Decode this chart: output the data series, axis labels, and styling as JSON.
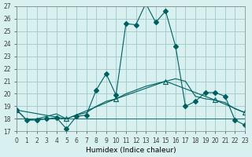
{
  "title": "",
  "xlabel": "Humidex (Indice chaleur)",
  "ylabel": "",
  "bg_color": "#d8f0f0",
  "grid_color": "#a0c8c8",
  "line_color": "#006060",
  "xlim": [
    0,
    23
  ],
  "ylim": [
    17,
    27
  ],
  "yticks": [
    17,
    18,
    19,
    20,
    21,
    22,
    23,
    24,
    25,
    26,
    27
  ],
  "xticks": [
    0,
    1,
    2,
    3,
    4,
    5,
    6,
    7,
    8,
    9,
    10,
    11,
    12,
    13,
    14,
    15,
    16,
    17,
    18,
    19,
    20,
    21,
    22,
    23
  ],
  "series": [
    {
      "x": [
        0,
        1,
        2,
        3,
        4,
        5,
        6,
        7,
        8,
        9,
        10,
        11,
        12,
        13,
        14,
        15,
        16,
        17,
        18,
        19,
        20,
        21,
        22,
        23
      ],
      "y": [
        18.7,
        17.9,
        17.9,
        18.0,
        18.1,
        17.2,
        18.2,
        18.3,
        20.3,
        21.6,
        19.9,
        25.6,
        25.5,
        27.2,
        25.7,
        26.6,
        23.8,
        19.0,
        19.4,
        20.1,
        20.1,
        19.8,
        17.9,
        17.5
      ],
      "marker": "D",
      "markersize": 3,
      "linestyle": "-",
      "has_marker": true
    },
    {
      "x": [
        0,
        1,
        2,
        3,
        4,
        5,
        6,
        7,
        8,
        9,
        10,
        11,
        12,
        13,
        14,
        15,
        16,
        17,
        18,
        19,
        20,
        21,
        22,
        23
      ],
      "y": [
        18.7,
        17.9,
        18.0,
        18.2,
        18.4,
        18.0,
        18.3,
        18.5,
        19.0,
        19.4,
        19.6,
        20.0,
        20.3,
        20.6,
        20.8,
        21.0,
        21.2,
        21.0,
        19.8,
        19.6,
        19.5,
        19.3,
        18.8,
        18.5
      ],
      "marker": null,
      "markersize": 0,
      "linestyle": "-",
      "has_marker": false
    },
    {
      "x": [
        0,
        5,
        10,
        15,
        20,
        23
      ],
      "y": [
        18.7,
        18.0,
        19.6,
        21.0,
        19.5,
        18.5
      ],
      "marker": "^",
      "markersize": 4,
      "linestyle": "-",
      "has_marker": true
    },
    {
      "x": [
        0,
        1,
        2,
        3,
        4,
        5,
        6,
        7,
        8,
        9,
        10,
        11,
        12,
        13,
        14,
        15,
        16,
        17,
        18,
        19,
        20,
        21,
        22,
        23
      ],
      "y": [
        18.0,
        18.0,
        18.0,
        18.0,
        18.0,
        18.0,
        18.0,
        18.0,
        18.0,
        18.0,
        18.0,
        18.0,
        18.0,
        18.0,
        18.0,
        18.0,
        18.0,
        18.0,
        18.0,
        18.0,
        18.0,
        18.0,
        18.0,
        18.0
      ],
      "marker": null,
      "markersize": 0,
      "linestyle": "-",
      "has_marker": false
    }
  ]
}
